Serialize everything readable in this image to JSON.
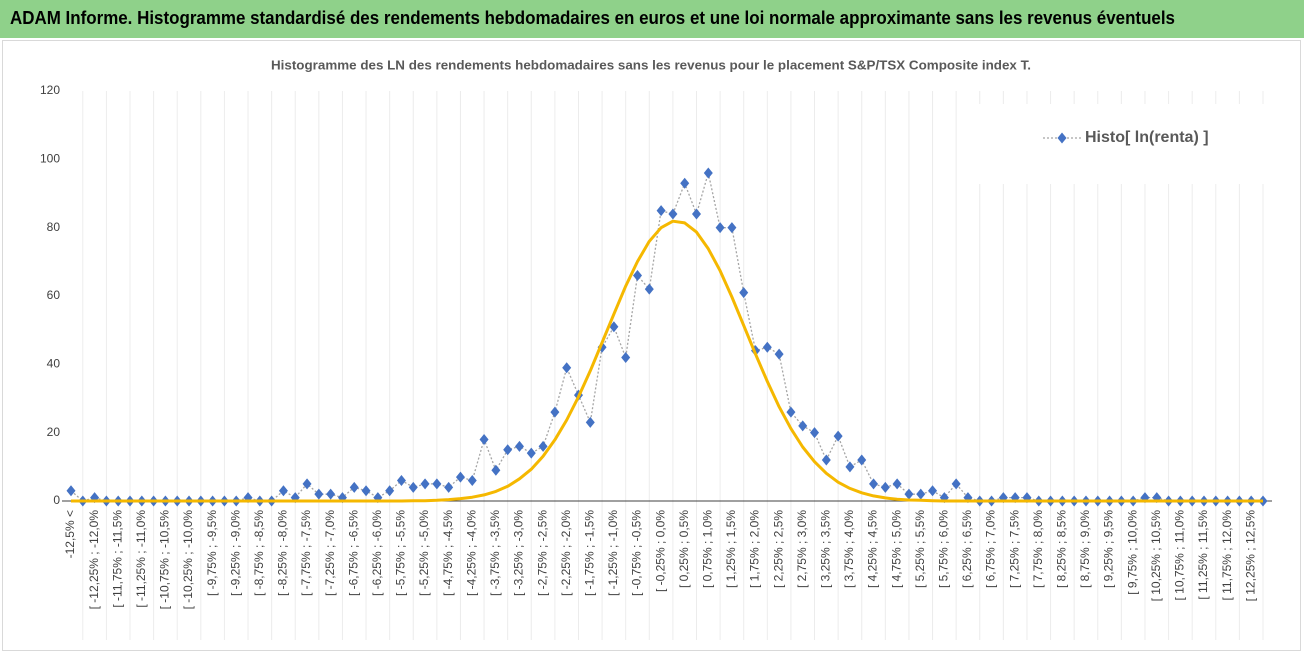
{
  "chart_data": {
    "type": "line",
    "title": "ADAM Informe. Histogramme standardisé des rendements hebdomadaires en euros et une loi normale approximante sans les revenus éventuels",
    "subtitle": "Histogramme des LN des rendements hebdomadaires sans les revenus pour le placement S&P/TSX Composite index T.",
    "categories": [
      "-12,5% <",
      null,
      "[ -12,25% ; -12,0%",
      null,
      "[ -11,75% ; -11,5%",
      null,
      "[ -11,25% ; -11,0%",
      null,
      "[ -10,75% ; -10,5%",
      null,
      "[ -10,25% ; -10,0%",
      null,
      "[ -9,75% ; -9,5%",
      null,
      "[ -9,25% ; -9,0%",
      null,
      "[ -8,75% ; -8,5%",
      null,
      "[ -8,25% ; -8,0%",
      null,
      "[ -7,75% ; -7,5%",
      null,
      "[ -7,25% ; -7,0%",
      null,
      "[ -6,75% ; -6,5%",
      null,
      "[ -6,25% ; -6,0%",
      null,
      "[ -5,75% ; -5,5%",
      null,
      "[ -5,25% ; -5,0%",
      null,
      "[ -4,75% ; -4,5%",
      null,
      "[ -4,25% ; -4,0%",
      null,
      "[ -3,75% ; -3,5%",
      null,
      "[ -3,25% ; -3,0%",
      null,
      "[ -2,75% ; -2,5%",
      null,
      "[ -2,25% ; -2,0%",
      null,
      "[ -1,75% ; -1,5%",
      null,
      "[ -1,25% ; -1,0%",
      null,
      "[ -0,75% ; -0,5%",
      null,
      "[ -0,25% ; 0,0%",
      null,
      "[ 0,25% ; 0,5%",
      null,
      "[ 0,75% ; 1,0%",
      null,
      "[ 1,25% ; 1,5%",
      null,
      "[ 1,75% ; 2,0%",
      null,
      "[ 2,25% ; 2,5%",
      null,
      "[ 2,75% ; 3,0%",
      null,
      "[ 3,25% ; 3,5%",
      null,
      "[ 3,75% ; 4,0%",
      null,
      "[ 4,25% ; 4,5%",
      null,
      "[ 4,75% ; 5,0%",
      null,
      "[ 5,25% ; 5,5%",
      null,
      "[ 5,75% ; 6,0%",
      null,
      "[ 6,25% ; 6,5%",
      null,
      "[ 6,75% ; 7,0%",
      null,
      "[ 7,25% ; 7,5%",
      null,
      "[ 7,75% ; 8,0%",
      null,
      "[ 8,25% ; 8,5%",
      null,
      "[ 8,75% ; 9,0%",
      null,
      "[ 9,25% ; 9,5%",
      null,
      "[ 9,75% ; 10,0%",
      null,
      "[ 10,25% ; 10,5%",
      null,
      "[ 10,75% ; 11,0%",
      null,
      "[ 11,25% ; 11,5%",
      null,
      "[ 11,75% ; 12,0%",
      null,
      "[ 12,25% ; 12,5%",
      null
    ],
    "series": [
      {
        "name": "Histo[ ln(renta) ]",
        "color": "#4472c4",
        "line_color": "#a5a5a5",
        "values": [
          3,
          0,
          1,
          0,
          0,
          0,
          0,
          0,
          0,
          0,
          0,
          0,
          0,
          0,
          0,
          1,
          0,
          0,
          3,
          1,
          5,
          2,
          2,
          1,
          4,
          3,
          1,
          3,
          6,
          4,
          5,
          5,
          4,
          7,
          6,
          18,
          9,
          15,
          16,
          14,
          16,
          26,
          39,
          31,
          23,
          45,
          51,
          42,
          66,
          62,
          85,
          84,
          93,
          84,
          96,
          80,
          80,
          61,
          44,
          45,
          43,
          26,
          22,
          20,
          12,
          19,
          10,
          12,
          5,
          4,
          5,
          2,
          2,
          3,
          1,
          5,
          1,
          0,
          0,
          1,
          1,
          1,
          0,
          0,
          0,
          0,
          0,
          0,
          0,
          0,
          0,
          1,
          1,
          0,
          0,
          0,
          0,
          0,
          0,
          0,
          0,
          0
        ]
      },
      {
        "color": "#f5b800",
        "values": [
          0,
          0,
          0,
          0,
          0,
          0,
          0,
          0,
          0,
          0,
          0,
          0,
          0,
          0,
          0,
          0,
          0,
          0,
          0,
          0,
          0,
          0,
          0,
          0,
          0,
          0,
          0,
          0,
          0,
          0.1,
          0.1,
          0.2,
          0.4,
          0.7,
          1.1,
          1.8,
          2.8,
          4.3,
          6.5,
          9.3,
          13.1,
          17.9,
          23.7,
          30.5,
          38.1,
          46.4,
          54.7,
          62.9,
          70.1,
          76.0,
          80.0,
          81.9,
          81.4,
          78.7,
          73.8,
          67.4,
          59.7,
          51.4,
          43.0,
          35.0,
          27.6,
          21.2,
          15.8,
          11.5,
          8.1,
          5.5,
          3.7,
          2.4,
          1.5,
          0.9,
          0.5,
          0.3,
          0.2,
          0.1,
          0,
          0,
          0,
          0,
          0,
          0,
          0,
          0,
          0,
          0,
          0,
          0,
          0,
          0,
          0,
          0,
          0,
          0,
          0,
          0,
          0,
          0,
          0,
          0,
          0,
          0,
          0,
          0
        ]
      }
    ],
    "ylim": [
      0,
      120
    ],
    "yticks": [
      0,
      20,
      40,
      60,
      80,
      100,
      120
    ],
    "legend": "top-right"
  }
}
